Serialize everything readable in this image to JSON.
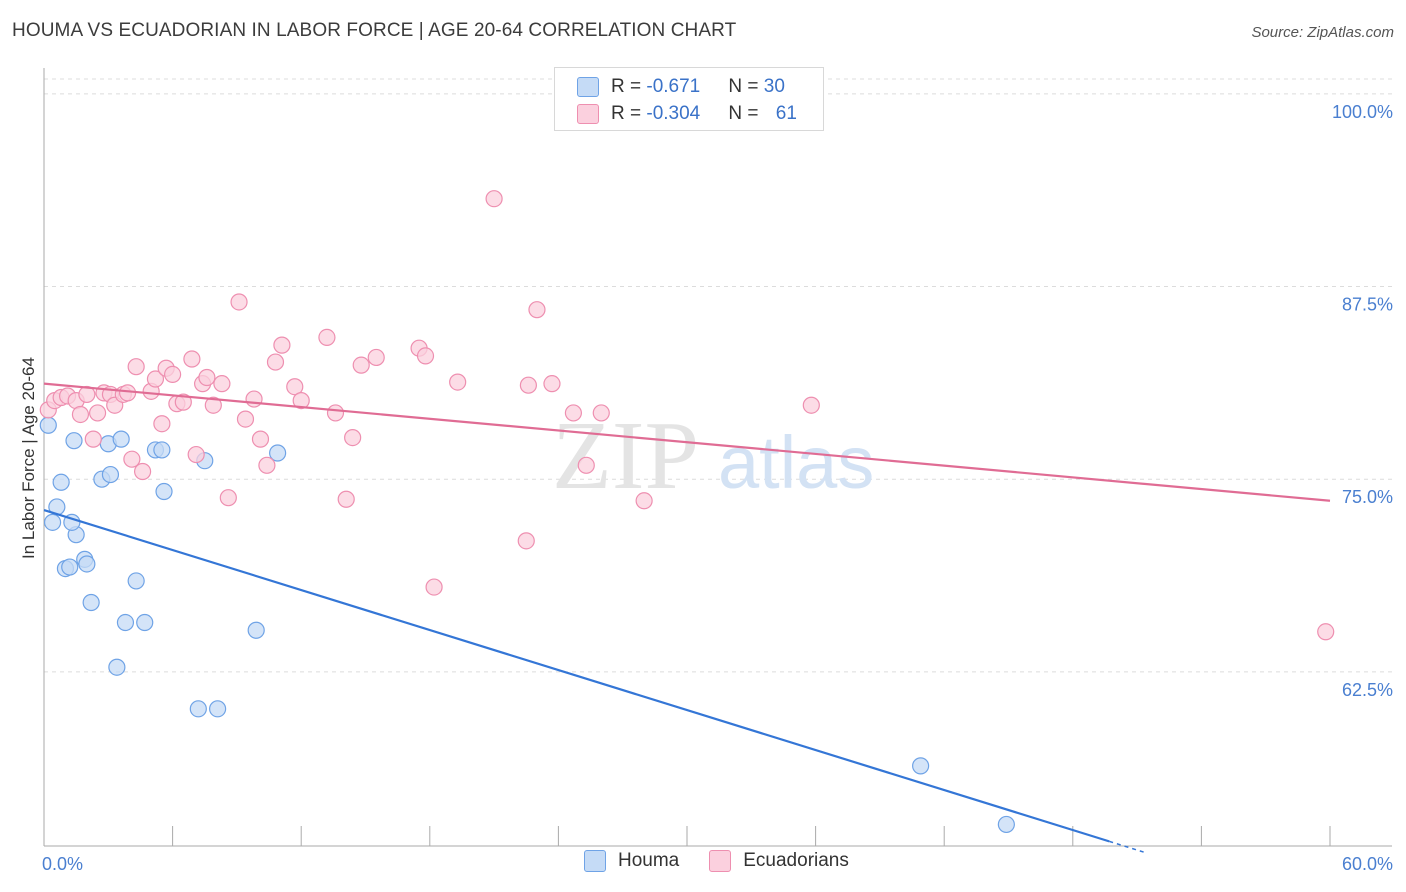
{
  "title": "HOUMA VS ECUADORIAN IN LABOR FORCE | AGE 20-64 CORRELATION CHART",
  "source": "Source: ZipAtlas.com",
  "watermark": {
    "zip": "ZIP",
    "atlas": "atlas"
  },
  "legend": {
    "rows": [
      {
        "r_label": "R = ",
        "r_value": "-0.671",
        "n_label": "N = ",
        "n_value": "30",
        "color": "#6fa3e6",
        "fill": "#c5dbf6"
      },
      {
        "r_label": "R = ",
        "r_value": "-0.304",
        "n_label": "N = ",
        "n_value": "61",
        "color": "#ee8fb0",
        "fill": "#fbd0de"
      }
    ]
  },
  "bottom_legend": [
    {
      "label": "Houma",
      "color": "#6fa3e6",
      "fill": "#c5dbf6"
    },
    {
      "label": "Ecuadorians",
      "color": "#ee8fb0",
      "fill": "#fbd0de"
    }
  ],
  "chart_data": {
    "type": "scatter",
    "title": "HOUMA VS ECUADORIAN IN LABOR FORCE | AGE 20-64 CORRELATION CHART",
    "xlabel": "",
    "ylabel": "In Labor Force | Age 20-64",
    "xlim": [
      0,
      60
    ],
    "ylim": [
      51.2,
      102.2
    ],
    "x_tick_labels": [
      {
        "value": 0,
        "label": "0.0%"
      },
      {
        "value": 60,
        "label": "60.0%"
      }
    ],
    "y_ticks": [
      {
        "value": 100,
        "label": "100.0%"
      },
      {
        "value": 87.5,
        "label": "87.5%"
      },
      {
        "value": 75,
        "label": "75.0%"
      },
      {
        "value": 62.5,
        "label": "62.5%"
      }
    ],
    "series": [
      {
        "name": "Houma",
        "color": "#6fa3e6",
        "fill": "#c5dbf6",
        "trend_color": "#3476d6",
        "trend": {
          "x": [
            0,
            49.7
          ],
          "y": [
            73.0,
            51.5
          ],
          "dash_to_x": 51.4
        },
        "points": [
          [
            0.2,
            78.5
          ],
          [
            0.4,
            72.2
          ],
          [
            0.6,
            73.2
          ],
          [
            0.8,
            74.8
          ],
          [
            1.0,
            69.2
          ],
          [
            1.2,
            69.3
          ],
          [
            1.4,
            77.5
          ],
          [
            1.5,
            71.4
          ],
          [
            1.9,
            69.8
          ],
          [
            2.0,
            69.5
          ],
          [
            2.2,
            67.0
          ],
          [
            2.7,
            75.0
          ],
          [
            3.0,
            77.3
          ],
          [
            3.1,
            75.3
          ],
          [
            3.4,
            62.8
          ],
          [
            3.6,
            77.6
          ],
          [
            3.8,
            65.7
          ],
          [
            4.3,
            68.4
          ],
          [
            4.7,
            65.7
          ],
          [
            5.2,
            76.9
          ],
          [
            5.5,
            76.9
          ],
          [
            5.6,
            74.2
          ],
          [
            7.2,
            60.1
          ],
          [
            7.5,
            76.2
          ],
          [
            8.1,
            60.1
          ],
          [
            9.9,
            65.2
          ],
          [
            10.9,
            76.7
          ],
          [
            40.9,
            56.4
          ],
          [
            44.9,
            52.6
          ],
          [
            1.3,
            72.2
          ]
        ]
      },
      {
        "name": "Ecuadorians",
        "color": "#ee8fb0",
        "fill": "#fbd0de",
        "trend_color": "#e06c94",
        "trend": {
          "x": [
            0,
            60
          ],
          "y": [
            81.2,
            73.6
          ]
        },
        "points": [
          [
            0.2,
            79.5
          ],
          [
            0.5,
            80.1
          ],
          [
            0.8,
            80.3
          ],
          [
            1.1,
            80.4
          ],
          [
            1.5,
            80.1
          ],
          [
            1.7,
            79.2
          ],
          [
            2.0,
            80.5
          ],
          [
            2.3,
            77.6
          ],
          [
            2.5,
            79.3
          ],
          [
            2.8,
            80.6
          ],
          [
            3.1,
            80.5
          ],
          [
            3.3,
            79.8
          ],
          [
            3.7,
            80.5
          ],
          [
            3.9,
            80.6
          ],
          [
            4.1,
            76.3
          ],
          [
            4.3,
            82.3
          ],
          [
            4.6,
            75.5
          ],
          [
            5.0,
            80.7
          ],
          [
            5.2,
            81.5
          ],
          [
            5.5,
            78.6
          ],
          [
            5.7,
            82.2
          ],
          [
            6.0,
            81.8
          ],
          [
            6.2,
            79.9
          ],
          [
            6.5,
            80.0
          ],
          [
            6.9,
            82.8
          ],
          [
            7.1,
            76.6
          ],
          [
            7.4,
            81.2
          ],
          [
            7.6,
            81.6
          ],
          [
            7.9,
            79.8
          ],
          [
            8.3,
            81.2
          ],
          [
            8.6,
            73.8
          ],
          [
            9.1,
            86.5
          ],
          [
            9.4,
            78.9
          ],
          [
            9.8,
            80.2
          ],
          [
            10.1,
            77.6
          ],
          [
            10.4,
            75.9
          ],
          [
            10.8,
            82.6
          ],
          [
            11.1,
            83.7
          ],
          [
            11.7,
            81.0
          ],
          [
            12.0,
            80.1
          ],
          [
            13.2,
            84.2
          ],
          [
            13.6,
            79.3
          ],
          [
            14.1,
            73.7
          ],
          [
            14.4,
            77.7
          ],
          [
            14.8,
            82.4
          ],
          [
            15.5,
            82.9
          ],
          [
            17.5,
            83.5
          ],
          [
            17.8,
            83.0
          ],
          [
            18.2,
            68.0
          ],
          [
            19.3,
            81.3
          ],
          [
            21.0,
            93.2
          ],
          [
            22.5,
            71.0
          ],
          [
            22.6,
            81.1
          ],
          [
            23.0,
            86.0
          ],
          [
            23.7,
            81.2
          ],
          [
            24.7,
            79.3
          ],
          [
            25.3,
            75.9
          ],
          [
            26.0,
            79.3
          ],
          [
            28.0,
            73.6
          ],
          [
            35.8,
            79.8
          ],
          [
            59.8,
            65.1
          ]
        ]
      }
    ]
  }
}
